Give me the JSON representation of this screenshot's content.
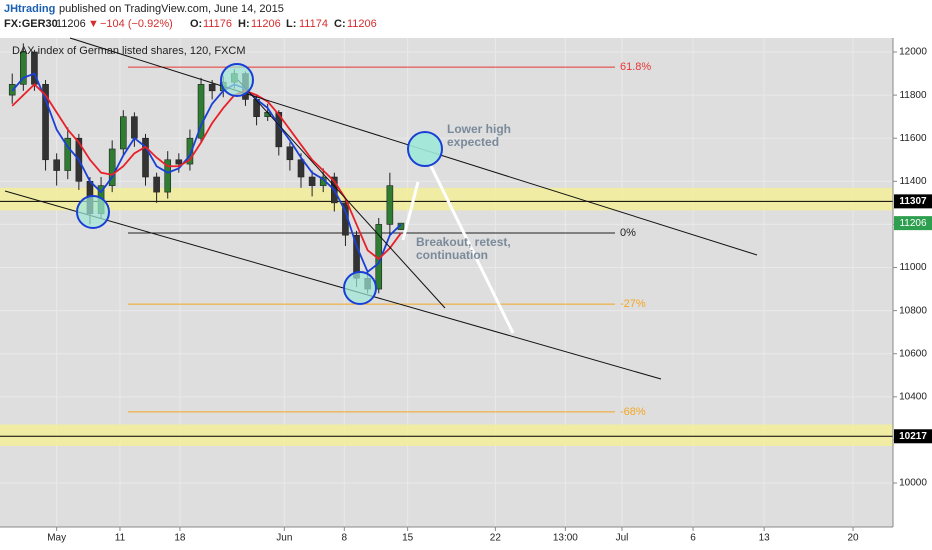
{
  "header": {
    "author": "JHtrading",
    "published": "published on TradingView.com, June 14, 2015",
    "symbol": "FX:GER30",
    "last": 11206,
    "arrow": "▼",
    "change": "−104 (−0.92%)",
    "ohlc": [
      {
        "label": "O:",
        "value": 11176
      },
      {
        "label": "H:",
        "value": 11206
      },
      {
        "label": "L:",
        "value": 11174
      },
      {
        "label": "C:",
        "value": 11206
      }
    ]
  },
  "chart_data": {
    "type": "candlestick",
    "title": "DAX index of German listed shares, 120, FXCM",
    "candles": {
      "x": [
        -4,
        -3,
        -2,
        -1,
        0,
        1,
        2,
        3,
        4,
        5,
        6,
        7,
        8,
        9,
        10,
        11,
        12,
        13,
        14,
        15,
        16,
        17,
        18,
        19,
        20,
        21,
        22,
        23,
        24,
        25,
        26,
        27,
        28,
        29,
        30,
        31
      ],
      "open": [
        11800,
        11850,
        12000,
        11850,
        11500,
        11450,
        11600,
        11400,
        11250,
        11380,
        11550,
        11700,
        11600,
        11420,
        11350,
        11500,
        11480,
        11600,
        11850,
        11820,
        11860,
        11900,
        11780,
        11700,
        11720,
        11560,
        11500,
        11420,
        11380,
        11420,
        11300,
        11150,
        10950,
        10900,
        11200,
        11176
      ],
      "high": [
        11900,
        12040,
        12010,
        11870,
        11530,
        11650,
        11620,
        11420,
        11420,
        11590,
        11730,
        11720,
        11620,
        11440,
        11540,
        11530,
        11640,
        11880,
        11870,
        11890,
        11920,
        11910,
        11800,
        11760,
        11730,
        11580,
        11530,
        11450,
        11460,
        11440,
        11320,
        11170,
        10980,
        11230,
        11440,
        11206
      ],
      "low": [
        11760,
        11820,
        11820,
        11450,
        11380,
        11410,
        11360,
        11200,
        11230,
        11350,
        11520,
        11560,
        11380,
        11300,
        11320,
        11440,
        11450,
        11580,
        11780,
        11790,
        11830,
        11750,
        11660,
        11680,
        11520,
        11450,
        11370,
        11330,
        11350,
        11260,
        11100,
        10910,
        10880,
        10880,
        11150,
        11174
      ],
      "close": [
        11850,
        12000,
        11850,
        11500,
        11450,
        11600,
        11400,
        11250,
        11380,
        11550,
        11700,
        11600,
        11420,
        11350,
        11500,
        11480,
        11600,
        11850,
        11820,
        11860,
        11900,
        11780,
        11700,
        11720,
        11560,
        11500,
        11420,
        11380,
        11420,
        11300,
        11150,
        10950,
        10900,
        11200,
        11380,
        11206
      ],
      "up_color": "#2e7d32",
      "down_color": "#333333"
    },
    "series": [
      {
        "color": "#1a3fd6",
        "values": [
          11820,
          11880,
          11900,
          11780,
          11640,
          11560,
          11500,
          11400,
          11350,
          11420,
          11520,
          11600,
          11560,
          11470,
          11440,
          11460,
          11520,
          11660,
          11760,
          11820,
          11850,
          11830,
          11780,
          11740,
          11660,
          11590,
          11510,
          11440,
          11410,
          11360,
          11260,
          11100,
          10980,
          11020,
          11150,
          11200
        ]
      },
      {
        "color": "#e8202a",
        "values": [
          11750,
          11800,
          11850,
          11800,
          11720,
          11640,
          11580,
          11500,
          11440,
          11430,
          11470,
          11530,
          11560,
          11510,
          11470,
          11470,
          11500,
          11580,
          11670,
          11740,
          11800,
          11820,
          11800,
          11770,
          11710,
          11640,
          11570,
          11500,
          11450,
          11400,
          11320,
          11200,
          11080,
          11040,
          11090,
          11160
        ]
      }
    ],
    "levels": [
      {
        "label": "61.8%",
        "value": 11930,
        "color": "#e53935"
      },
      {
        "label": "0%",
        "value": 11160,
        "color": "#222222"
      },
      {
        "label": "-27%",
        "value": 10830,
        "color": "#f5a623"
      },
      {
        "label": "-68%",
        "value": 10330,
        "color": "#f5a623"
      }
    ],
    "zones": [
      {
        "from": 11265,
        "to": 11370
      },
      {
        "from": 10172,
        "to": 10272
      }
    ],
    "price_lines": [
      {
        "value": 11307,
        "color": "#000000"
      },
      {
        "value": 10217,
        "color": "#000000"
      }
    ],
    "last_price": {
      "value": 11206,
      "color": "#2e9e4f"
    },
    "annotations": [
      [
        "Lower high",
        "expected"
      ],
      [
        "Breakout, retest,",
        "continuation"
      ]
    ],
    "xlim": [
      -5.1,
      75.3
    ],
    "xticks": [
      {
        "value": 0,
        "label": "May"
      },
      {
        "value": 5.7,
        "label": "11"
      },
      {
        "value": 11.1,
        "label": "18"
      },
      {
        "value": 20.5,
        "label": "Jun"
      },
      {
        "value": 25.9,
        "label": "8"
      },
      {
        "value": 31.6,
        "label": "15"
      },
      {
        "value": 39.5,
        "label": "22"
      },
      {
        "value": 45.8,
        "label": "13:00"
      },
      {
        "value": 50.9,
        "label": "Jul"
      },
      {
        "value": 57.3,
        "label": "6"
      },
      {
        "value": 63.7,
        "label": "13"
      },
      {
        "value": 71.7,
        "label": "20"
      }
    ],
    "ylim": [
      9796,
      12065
    ],
    "yticks": [
      10000,
      10200,
      10400,
      10600,
      10800,
      11000,
      11200,
      11400,
      11600,
      11800,
      12000
    ],
    "grid": true
  }
}
